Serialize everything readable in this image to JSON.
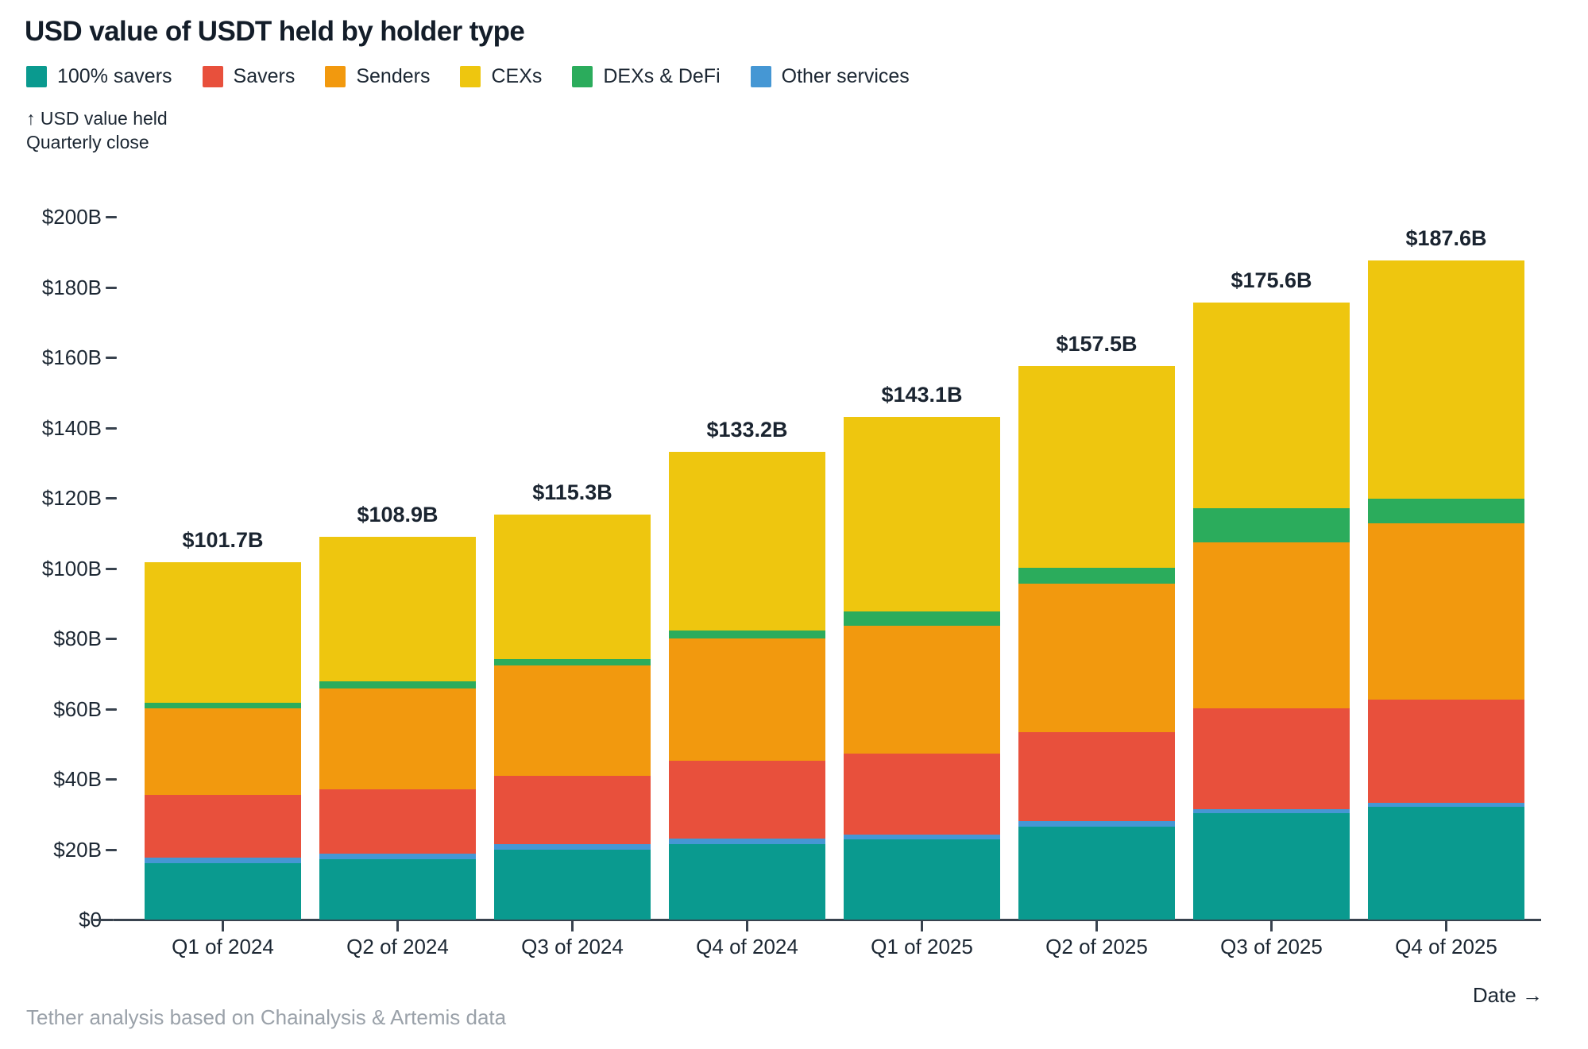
{
  "title": "USD value of USDT held by holder type",
  "legend": {
    "items": [
      {
        "label": "100% savers",
        "color": "#0A9A8F"
      },
      {
        "label": "Savers",
        "color": "#E8503C"
      },
      {
        "label": "Senders",
        "color": "#F2990E"
      },
      {
        "label": "CEXs",
        "color": "#EEC60F"
      },
      {
        "label": "DEXs & DeFi",
        "color": "#2BAC5C"
      },
      {
        "label": "Other services",
        "color": "#4597D4"
      }
    ]
  },
  "y_axis_annotation": {
    "line1": "↑ USD value held",
    "line2": "Quarterly close"
  },
  "footer": {
    "source": "Tether analysis based on Chainalysis & Artemis data",
    "date_axis_label": "Date →"
  },
  "chart_data": {
    "type": "bar",
    "stacked": true,
    "title": "USD value of USDT held by holder type",
    "unit": "USD billions",
    "grid": false,
    "legend_position": "top",
    "categories": [
      "Q1 of 2024",
      "Q2 of 2024",
      "Q3 of 2024",
      "Q4 of 2024",
      "Q1 of 2025",
      "Q2 of 2025",
      "Q3 of 2025",
      "Q4 of 2025"
    ],
    "totals": [
      101.7,
      108.9,
      115.3,
      133.2,
      143.1,
      157.5,
      175.6,
      187.6
    ],
    "total_labels": [
      "$101.7B",
      "$108.9B",
      "$115.3B",
      "$133.2B",
      "$143.1B",
      "$157.5B",
      "$175.6B",
      "$187.6B"
    ],
    "series_stack_order": "bottom to top",
    "series": [
      {
        "name": "100% savers",
        "color": "#0A9A8F",
        "values": [
          16.0,
          17.2,
          19.9,
          21.5,
          22.9,
          26.4,
          30.3,
          32.1
        ]
      },
      {
        "name": "Other services",
        "color": "#4597D4",
        "values": [
          1.6,
          1.6,
          1.6,
          1.6,
          1.3,
          1.6,
          1.1,
          1.1
        ]
      },
      {
        "name": "Savers",
        "color": "#E8503C",
        "values": [
          17.9,
          18.3,
          19.4,
          22.1,
          23.0,
          25.3,
          28.7,
          29.4
        ]
      },
      {
        "name": "Senders",
        "color": "#F2990E",
        "values": [
          24.6,
          28.7,
          31.4,
          34.8,
          36.4,
          42.3,
          47.2,
          50.2
        ]
      },
      {
        "name": "DEXs & DeFi",
        "color": "#2BAC5C",
        "values": [
          1.6,
          2.0,
          1.8,
          2.3,
          4.1,
          4.5,
          9.8,
          7.0
        ]
      },
      {
        "name": "CEXs",
        "color": "#EEC60F",
        "values": [
          40.0,
          41.1,
          41.2,
          50.9,
          55.4,
          57.4,
          58.5,
          67.8
        ]
      }
    ],
    "y_axis": {
      "min": 0,
      "max": 200,
      "tick_step": 20,
      "ticks": [
        {
          "value": 0,
          "label": "$0"
        },
        {
          "value": 20,
          "label": "$20B"
        },
        {
          "value": 40,
          "label": "$40B"
        },
        {
          "value": 60,
          "label": "$60B"
        },
        {
          "value": 80,
          "label": "$80B"
        },
        {
          "value": 100,
          "label": "$100B"
        },
        {
          "value": 120,
          "label": "$120B"
        },
        {
          "value": 140,
          "label": "$140B"
        },
        {
          "value": 160,
          "label": "$160B"
        },
        {
          "value": 180,
          "label": "$180B"
        },
        {
          "value": 200,
          "label": "$200B"
        }
      ]
    },
    "x_axis_label": "Date →"
  }
}
